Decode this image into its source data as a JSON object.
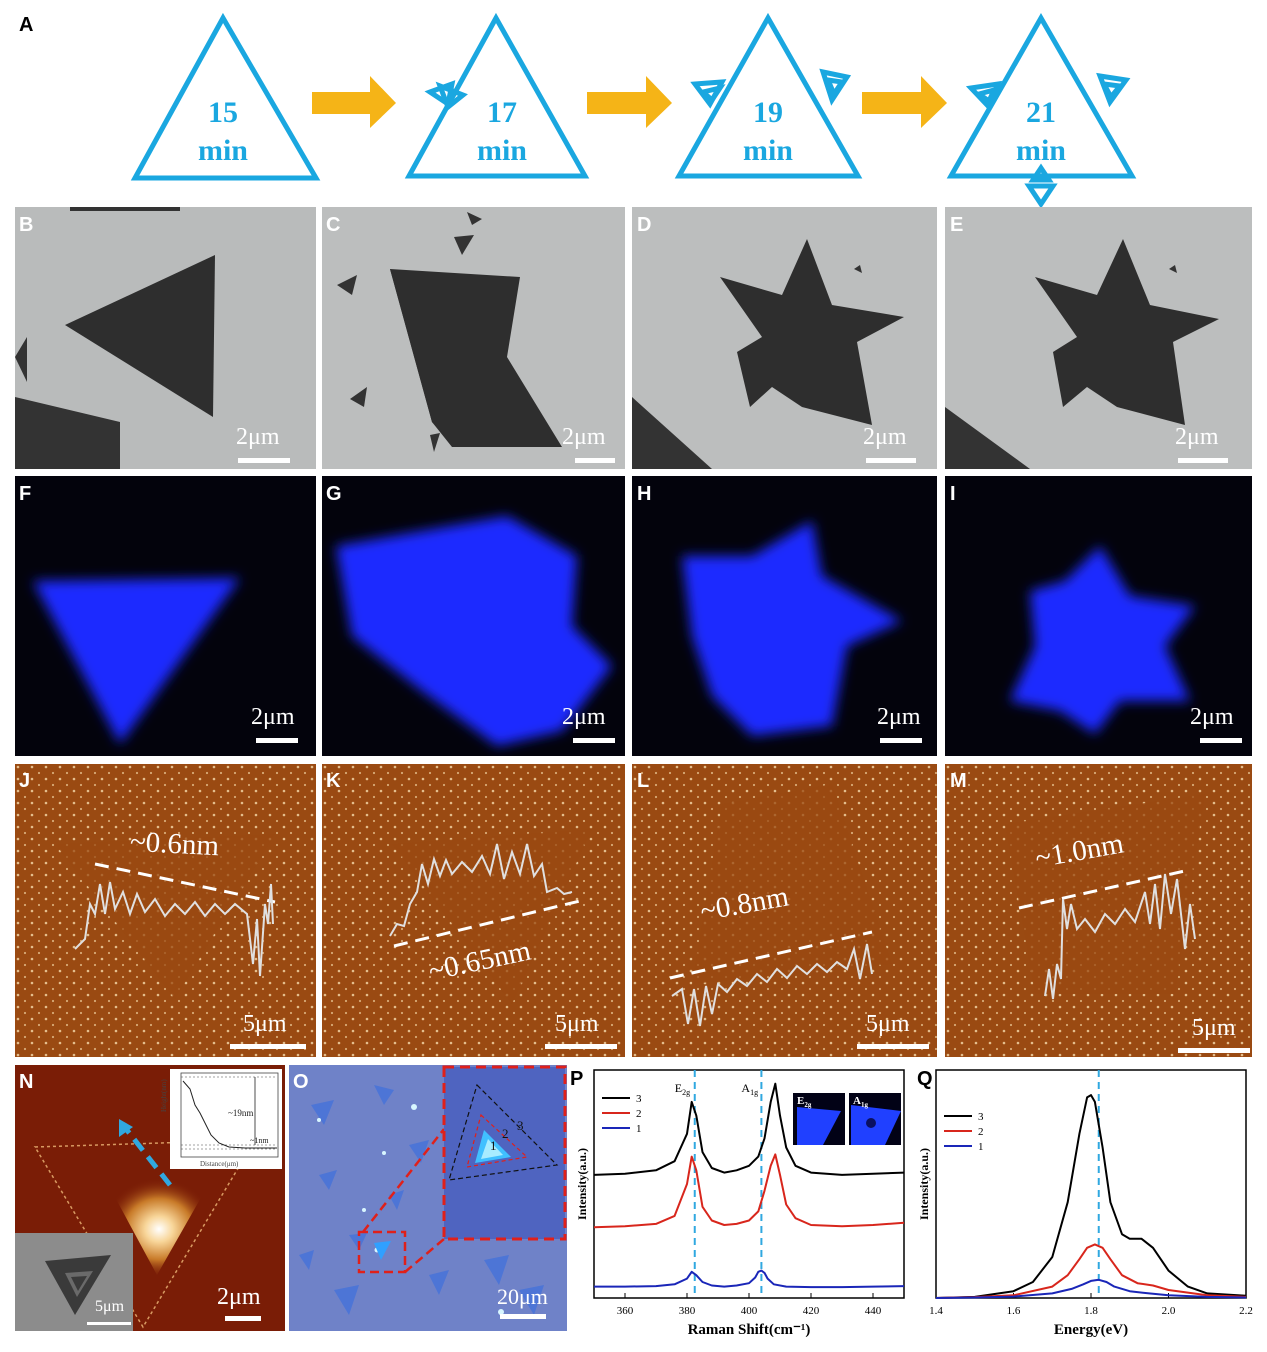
{
  "panel_letters": {
    "a": "A",
    "b": "B",
    "c": "C",
    "d": "D",
    "e": "E",
    "f": "F",
    "g": "G",
    "h": "H",
    "i": "I",
    "j": "J",
    "k": "K",
    "l": "L",
    "m": "M",
    "n": "N",
    "o": "O",
    "p": "P",
    "q": "Q"
  },
  "schematic": {
    "steps": [
      {
        "num": "15",
        "unit": "min"
      },
      {
        "num": "17",
        "unit": "min"
      },
      {
        "num": "19",
        "unit": "min"
      },
      {
        "num": "21",
        "unit": "min"
      }
    ]
  },
  "scale_bars": {
    "sem": "2μm",
    "pl": "2μm",
    "afm": "5μm",
    "n_main": "2μm",
    "n_inset": "5μm",
    "o": "20μm"
  },
  "afm_heights": {
    "j": "~0.6nm",
    "k": "~0.65nm",
    "l": "~0.8nm",
    "m": "~1.0nm"
  },
  "n_inset_plot": {
    "ylabel": "Height(nm)",
    "xlabel": "Distance(μm)",
    "h1": "~19nm",
    "h2": "~1nm"
  },
  "o_inset_labels": [
    "1",
    "2",
    "3"
  ],
  "colors": {
    "schematic_blue": "#1aa7e0",
    "arrow_orange": "#f5b417",
    "pl_blue": "#1a2cff",
    "afm_brown": "#9a4a12",
    "series_3": "#000000",
    "series_2": "#d8261c",
    "series_1": "#1a26b8",
    "dashed": "#30a8e0"
  },
  "chart_data": [
    {
      "type": "line",
      "panel": "P",
      "xlabel": "Raman Shift(cm⁻¹)",
      "ylabel": "Intensity(a.u.)",
      "xlim": [
        350,
        450
      ],
      "xticks": [
        "360",
        "380",
        "400",
        "420",
        "440"
      ],
      "annotations": [
        "E2g",
        "A1g"
      ],
      "inset_labels": [
        "E2g",
        "A1g"
      ],
      "peak_markers": [
        382.5,
        404
      ],
      "legend": [
        "3",
        "2",
        "1"
      ],
      "legend_position": "top-left",
      "series": [
        {
          "name": "3",
          "x": [
            350,
            360,
            370,
            376,
            380,
            381.5,
            383,
            385,
            388,
            392,
            396,
            400,
            403,
            405,
            407,
            408.5,
            410,
            412,
            415,
            420,
            430,
            440,
            450
          ],
          "y": [
            0.54,
            0.545,
            0.56,
            0.6,
            0.72,
            0.86,
            0.8,
            0.64,
            0.57,
            0.55,
            0.56,
            0.58,
            0.62,
            0.7,
            0.86,
            0.94,
            0.8,
            0.66,
            0.58,
            0.55,
            0.54,
            0.545,
            0.55
          ]
        },
        {
          "name": "2",
          "x": [
            350,
            360,
            370,
            376,
            380,
            381.5,
            383,
            385,
            388,
            392,
            396,
            400,
            403,
            405,
            407,
            408.5,
            410,
            412,
            415,
            420,
            430,
            440,
            450
          ],
          "y": [
            0.31,
            0.315,
            0.325,
            0.36,
            0.5,
            0.62,
            0.56,
            0.4,
            0.34,
            0.32,
            0.325,
            0.34,
            0.38,
            0.47,
            0.58,
            0.63,
            0.54,
            0.41,
            0.35,
            0.32,
            0.315,
            0.32,
            0.33
          ]
        },
        {
          "name": "1",
          "x": [
            350,
            360,
            370,
            376,
            380,
            381.5,
            383,
            385,
            388,
            392,
            396,
            400,
            402,
            403,
            404,
            405,
            406,
            408,
            412,
            420,
            430,
            440,
            450
          ],
          "y": [
            0.05,
            0.05,
            0.052,
            0.06,
            0.085,
            0.115,
            0.1,
            0.07,
            0.055,
            0.05,
            0.055,
            0.065,
            0.09,
            0.115,
            0.12,
            0.11,
            0.085,
            0.06,
            0.05,
            0.048,
            0.048,
            0.05,
            0.052
          ]
        }
      ]
    },
    {
      "type": "line",
      "panel": "Q",
      "xlabel": "Energy(eV)",
      "ylabel": "Intensity(a.u.)",
      "xlim": [
        1.4,
        2.2
      ],
      "xticks": [
        "1.4",
        "1.6",
        "1.8",
        "2.0",
        "2.2"
      ],
      "peak_markers": [
        1.82
      ],
      "legend": [
        "3",
        "2",
        "1"
      ],
      "legend_position": "top-left",
      "series": [
        {
          "name": "3",
          "x": [
            1.4,
            1.5,
            1.6,
            1.65,
            1.7,
            1.74,
            1.77,
            1.79,
            1.8,
            1.81,
            1.83,
            1.85,
            1.88,
            1.9,
            1.93,
            1.96,
            2.0,
            2.05,
            2.1,
            2.2
          ],
          "y": [
            0.0,
            0.005,
            0.03,
            0.07,
            0.18,
            0.42,
            0.72,
            0.88,
            0.89,
            0.86,
            0.66,
            0.42,
            0.28,
            0.26,
            0.26,
            0.22,
            0.12,
            0.05,
            0.02,
            0.01
          ]
        },
        {
          "name": "2",
          "x": [
            1.4,
            1.5,
            1.6,
            1.7,
            1.74,
            1.77,
            1.79,
            1.81,
            1.83,
            1.85,
            1.88,
            1.92,
            1.96,
            2.0,
            2.1,
            2.2
          ],
          "y": [
            0.0,
            0.004,
            0.012,
            0.05,
            0.1,
            0.17,
            0.22,
            0.235,
            0.22,
            0.17,
            0.1,
            0.065,
            0.055,
            0.035,
            0.012,
            0.005
          ]
        },
        {
          "name": "1",
          "x": [
            1.4,
            1.5,
            1.6,
            1.7,
            1.75,
            1.78,
            1.8,
            1.82,
            1.84,
            1.86,
            1.9,
            1.95,
            2.0,
            2.1,
            2.2
          ],
          "y": [
            0.0,
            0.002,
            0.006,
            0.02,
            0.04,
            0.06,
            0.075,
            0.08,
            0.07,
            0.05,
            0.03,
            0.02,
            0.012,
            0.005,
            0.002
          ]
        }
      ]
    }
  ]
}
